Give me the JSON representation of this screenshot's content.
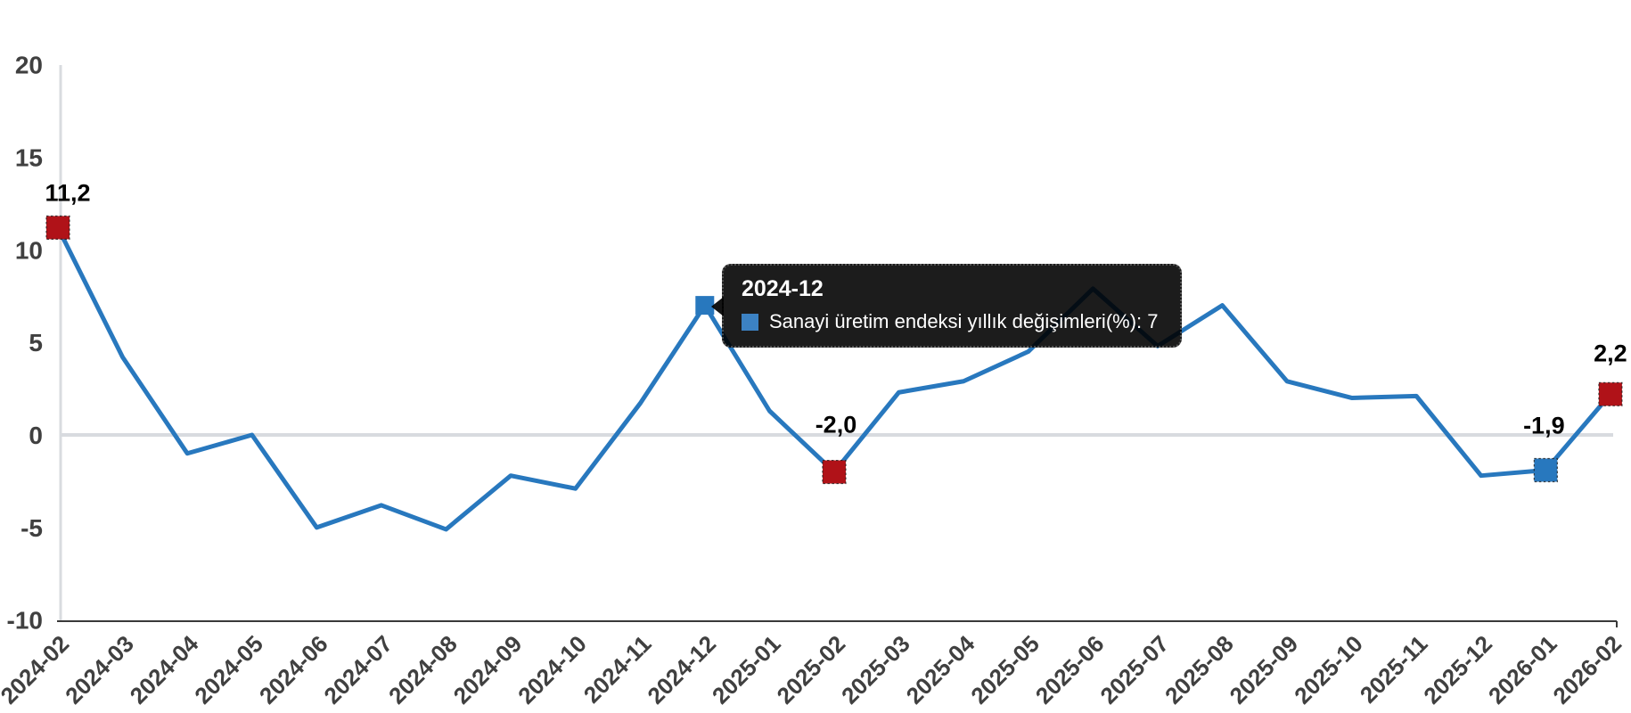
{
  "chart_data": {
    "type": "line",
    "title": "",
    "series": [
      {
        "name": "Sanayi üretim endeksi yıllık değişimleri(%)",
        "values": [
          11.2,
          4.2,
          -1.0,
          0.0,
          -5.0,
          -3.8,
          -5.1,
          -2.2,
          -2.9,
          1.7,
          7.0,
          1.3,
          -2.0,
          2.3,
          2.9,
          4.5,
          7.9,
          4.8,
          7.0,
          2.9,
          2.0,
          2.1,
          -2.2,
          -1.9,
          2.2
        ]
      }
    ],
    "categories": [
      "2024-02",
      "2024-03",
      "2024-04",
      "2024-05",
      "2024-06",
      "2024-07",
      "2024-08",
      "2024-09",
      "2024-10",
      "2024-11",
      "2024-12",
      "2025-01",
      "2025-02",
      "2025-03",
      "2025-04",
      "2025-05",
      "2025-06",
      "2025-07",
      "2025-08",
      "2025-09",
      "2025-10",
      "2025-11",
      "2025-12",
      "2026-01",
      "2026-02"
    ],
    "xlabel": "",
    "ylabel": "",
    "ylim": [
      -10,
      20
    ],
    "ytick_labels": [
      "20",
      "15",
      "10",
      "5",
      "0",
      "-5",
      "-10"
    ],
    "ytick_values": [
      20,
      15,
      10,
      5,
      0,
      -5,
      -10
    ],
    "grid": "zero-line-only",
    "legend_position": "none (series name shown only in tooltip)",
    "point_labels": [
      {
        "index": 0,
        "text": "11,2",
        "marker": "red"
      },
      {
        "index": 12,
        "text": "-2,0",
        "marker": "red"
      },
      {
        "index": 23,
        "text": "-1,9",
        "marker": "blue"
      },
      {
        "index": 24,
        "text": "2,2",
        "marker": "red"
      }
    ],
    "hover_point": {
      "index": 10,
      "category": "2024-12",
      "value": 7,
      "marker": "blue"
    }
  },
  "tooltip": {
    "title": "2024-12",
    "series_label": "Sanayi üretim endeksi yıllık değişimleri(%)",
    "value": "7",
    "text": "Sanayi üretim endeksi yıllık değişimleri(%): 7"
  },
  "colors": {
    "line": "#2878BE",
    "marker_red": "#B01218",
    "marker_blue": "#2878BE",
    "axis_light": "#D8DBDF",
    "axis_dark": "#3A3A3A",
    "tick_text": "#404040",
    "point_label_text": "#000000",
    "tooltip_bg": "#000000",
    "tooltip_text": "#FFFFFF",
    "tooltip_swatch": "#3C82C3"
  }
}
